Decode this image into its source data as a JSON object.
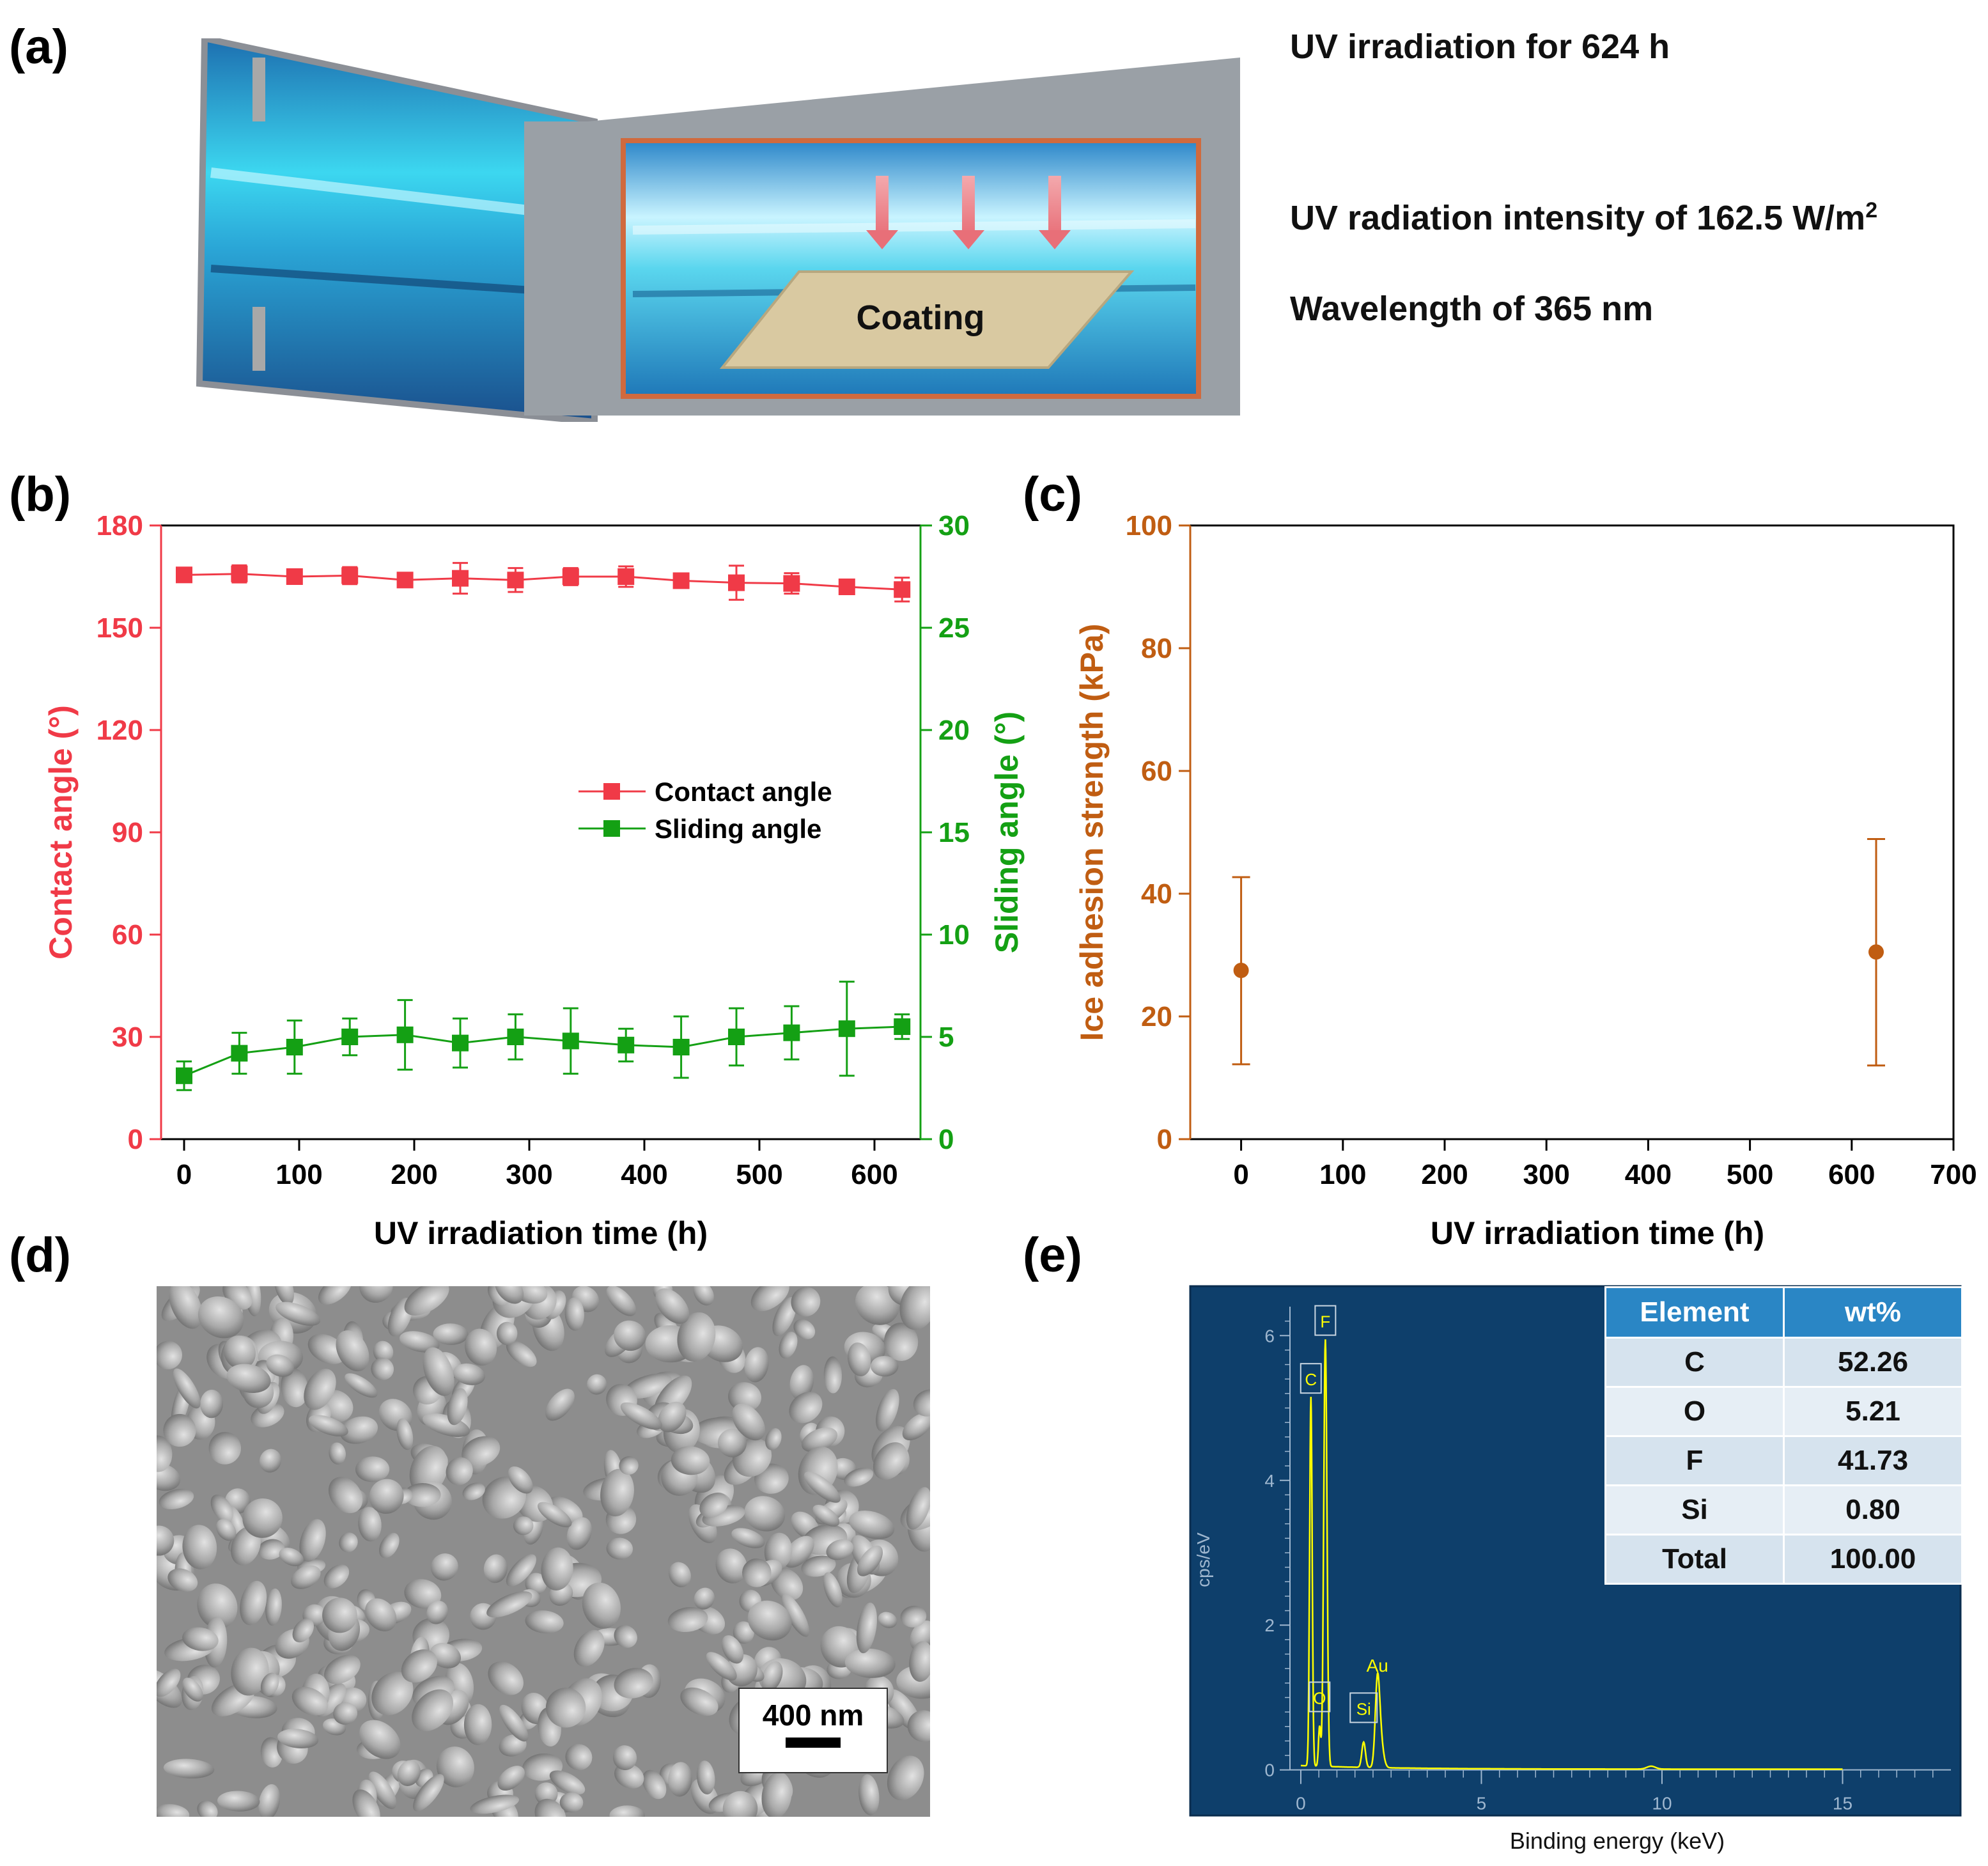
{
  "panels": {
    "a": {
      "label": "(a)",
      "coating_label": "Coating",
      "conditions": {
        "duration": "UV irradiation for 624 h",
        "intensity_text": "UV radiation intensity of 162.5 W/m",
        "intensity_sup": "2",
        "wavelength": "Wavelength of 365 nm"
      }
    },
    "b": {
      "label": "(b)"
    },
    "c": {
      "label": "(c)"
    },
    "d": {
      "label": "(d)",
      "scale_bar": "400 nm"
    },
    "e": {
      "label": "(e)"
    }
  },
  "colors": {
    "contact": "#f03a47",
    "sliding": "#14a014",
    "ice": "#c05d12",
    "eds_bg": "#0e3f6b",
    "eds_spectrum": "#ffff00",
    "table_header": "#2a86c5"
  },
  "chart_data": [
    {
      "type": "line",
      "panel": "b",
      "xlabel": "UV irradiation time (h)",
      "ylabel": "Contact angle (°)",
      "ylabel_right": "Sliding angle (°)",
      "xlim": [
        -20,
        640
      ],
      "ylim": [
        0,
        180
      ],
      "ylim_right": [
        0,
        30
      ],
      "xticks": [
        0,
        100,
        200,
        300,
        400,
        500,
        600
      ],
      "yticks": [
        0,
        30,
        60,
        90,
        120,
        150,
        180
      ],
      "yticks_right": [
        0,
        5,
        10,
        15,
        20,
        25,
        30
      ],
      "x": [
        0,
        48,
        96,
        144,
        192,
        240,
        288,
        336,
        384,
        432,
        480,
        528,
        576,
        624
      ],
      "legend_position": "center-right",
      "series": [
        {
          "name": "Contact angle",
          "axis": "left",
          "values": [
            165.5,
            165.8,
            165.0,
            165.3,
            164.0,
            164.5,
            164.0,
            165.0,
            165.0,
            163.8,
            163.2,
            163.0,
            162.0,
            161.2
          ],
          "errors": [
            1.5,
            2.5,
            1.8,
            2.5,
            1.8,
            4.5,
            3.5,
            2.5,
            3.0,
            1.8,
            5.0,
            3.0,
            2.0,
            3.5
          ]
        },
        {
          "name": "Sliding angle",
          "axis": "right",
          "values": [
            3.1,
            4.2,
            4.5,
            5.0,
            5.1,
            4.7,
            5.0,
            4.8,
            4.6,
            4.5,
            5.0,
            5.2,
            5.4,
            5.5
          ],
          "errors": [
            0.7,
            1.0,
            1.3,
            0.9,
            1.7,
            1.2,
            1.1,
            1.6,
            0.8,
            1.5,
            1.4,
            1.3,
            2.3,
            0.6
          ]
        }
      ]
    },
    {
      "type": "scatter",
      "panel": "c",
      "xlabel": "UV irradiation time (h)",
      "ylabel": "Ice adhesion strength (kPa)",
      "xlim": [
        -50,
        700
      ],
      "ylim": [
        0,
        100
      ],
      "xticks": [
        0,
        100,
        200,
        300,
        400,
        500,
        600,
        700
      ],
      "yticks": [
        0,
        20,
        40,
        60,
        80,
        100
      ],
      "series": [
        {
          "x": [
            0,
            624
          ],
          "values": [
            27.5,
            30.5
          ],
          "errors_low": [
            15.3,
            18.5
          ],
          "errors_high": [
            15.2,
            18.4
          ]
        }
      ]
    },
    {
      "type": "line",
      "panel": "e",
      "xlabel": "Binding energy (keV)",
      "ylabel": "cps/eV",
      "xlim": [
        -0.3,
        18
      ],
      "ylim": [
        -0.1,
        6.4
      ],
      "xticks": [
        0,
        5,
        10,
        15
      ],
      "yticks": [
        0,
        2,
        4,
        6
      ],
      "peak_labels": [
        {
          "label": "C",
          "x": 0.28,
          "y": 5.1
        },
        {
          "label": "F",
          "x": 0.68,
          "y": 5.9
        },
        {
          "label": "O",
          "x": 0.52,
          "y": 0.7
        },
        {
          "label": "Si",
          "x": 1.74,
          "y": 0.55
        },
        {
          "label": "Au",
          "x": 2.12,
          "y": 1.2
        }
      ],
      "table": {
        "columns": [
          "Element",
          "wt%"
        ],
        "rows": [
          [
            "C",
            "52.26"
          ],
          [
            "O",
            "5.21"
          ],
          [
            "F",
            "41.73"
          ],
          [
            "Si",
            "0.80"
          ],
          [
            "Total",
            "100.00"
          ]
        ]
      }
    }
  ]
}
